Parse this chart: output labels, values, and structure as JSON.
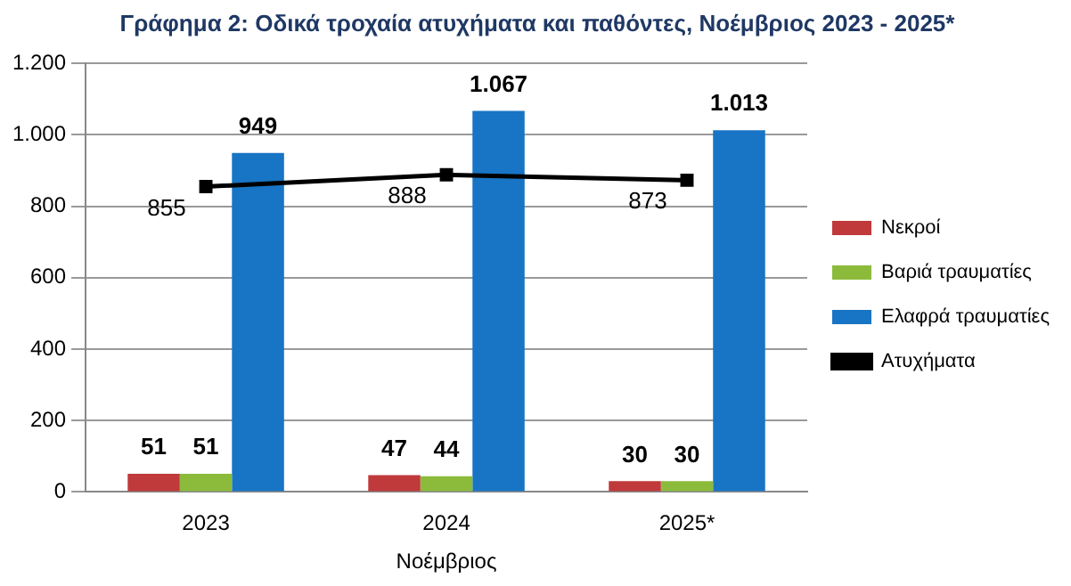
{
  "chart_data": {
    "type": "bar",
    "title": "Γράφημα 2: Οδικά τροχαία ατυχήματα και παθόντες, Νοέμβριος 2023 - 2025*",
    "xlabel": "Νοέμβριος",
    "categories": [
      "2023",
      "2024",
      "2025*"
    ],
    "series": [
      {
        "name": "Νεκροί",
        "color": "#c0393b",
        "values": [
          51,
          47,
          30
        ],
        "value_labels": [
          "51",
          "47",
          "30"
        ]
      },
      {
        "name": "Βαριά τραυματίες",
        "color": "#8cbb3c",
        "values": [
          51,
          44,
          30
        ],
        "value_labels": [
          "51",
          "44",
          "30"
        ]
      },
      {
        "name": "Ελαφρά τραυματίες",
        "color": "#1874c4",
        "values": [
          949,
          1067,
          1013
        ],
        "value_labels": [
          "949",
          "1.067",
          "1.013"
        ]
      },
      {
        "name": "Ατυχήματα",
        "type": "line",
        "color": "#000000",
        "marker": "square",
        "values": [
          855,
          888,
          873
        ],
        "value_labels": [
          "855",
          "888",
          "873"
        ]
      }
    ],
    "ylim": [
      0,
      1200
    ],
    "yticks": [
      {
        "value": 0,
        "label": "0"
      },
      {
        "value": 200,
        "label": "200"
      },
      {
        "value": 400,
        "label": "400"
      },
      {
        "value": 600,
        "label": "600"
      },
      {
        "value": 800,
        "label": "800"
      },
      {
        "value": 1000,
        "label": "1.000"
      },
      {
        "value": 1200,
        "label": "1.200"
      }
    ],
    "grid": "y",
    "legend": "right"
  }
}
